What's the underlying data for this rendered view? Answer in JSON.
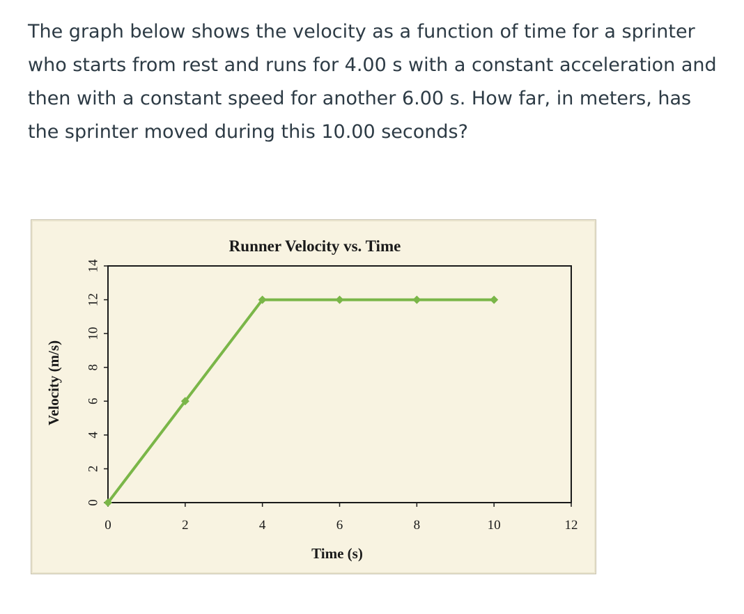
{
  "question": {
    "text": "The graph below shows the velocity as a function of time for a sprinter who starts from rest and runs for 4.00 s with a constant acceleration and then with a constant speed for another 6.00 s. How far, in meters, has the sprinter moved during this 10.00 seconds?"
  },
  "colors": {
    "line": "#7ab648",
    "background": "#f8f3e1",
    "axis": "#1a1a1a"
  },
  "chart_data": {
    "type": "line",
    "title": "Runner Velocity vs. Time",
    "xlabel": "Time (s)",
    "ylabel": "Velocity (m/s)",
    "xlim": [
      0,
      12
    ],
    "ylim": [
      0,
      14
    ],
    "xticks": [
      0,
      2,
      4,
      6,
      8,
      10,
      12
    ],
    "yticks": [
      0,
      2,
      4,
      6,
      8,
      10,
      12,
      14
    ],
    "grid": false,
    "series": [
      {
        "x": [
          0,
          2,
          4,
          6,
          8,
          10
        ],
        "y": [
          0,
          6,
          12,
          12,
          12,
          12
        ]
      }
    ]
  }
}
